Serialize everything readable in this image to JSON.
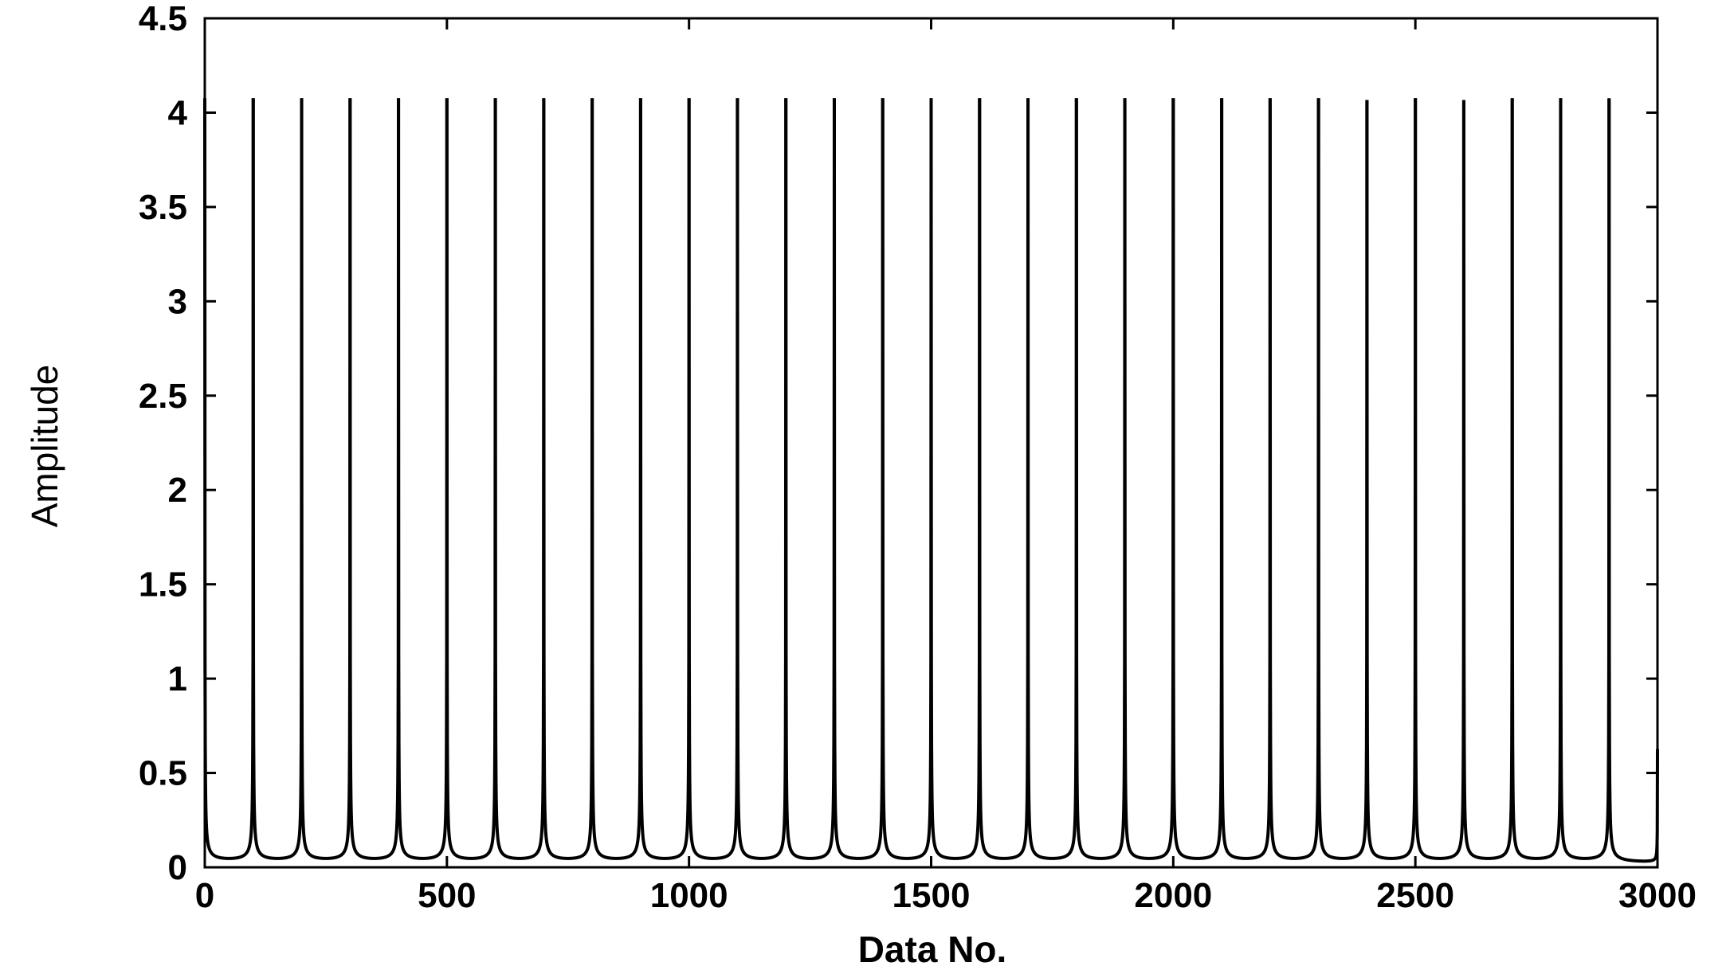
{
  "chart_data": {
    "type": "line",
    "title": "",
    "xlabel": "Data No.",
    "ylabel": "Amplitude",
    "xlim": [
      0,
      3000
    ],
    "ylim": [
      0,
      4.5
    ],
    "xticks": [
      0,
      500,
      1000,
      1500,
      2000,
      2500,
      3000
    ],
    "xtick_labels": [
      "0",
      "500",
      "1000",
      "1500",
      "2000",
      "2500",
      "3000"
    ],
    "yticks": [
      0,
      0.5,
      1,
      1.5,
      2,
      2.5,
      3,
      3.5,
      4,
      4.5
    ],
    "ytick_labels": [
      "0",
      "0.5",
      "1",
      "1.5",
      "2",
      "2.5",
      "3",
      "3.5",
      "4",
      "4.5"
    ],
    "grid": false,
    "legend": "none",
    "line_color": "#000000",
    "series": [
      {
        "peak_positions": [
          0,
          100,
          200,
          300,
          400,
          500,
          600,
          700,
          800,
          900,
          1000,
          1100,
          1200,
          1300,
          1400,
          1500,
          1600,
          1700,
          1800,
          1900,
          2000,
          2100,
          2200,
          2300,
          2400,
          2500,
          2600,
          2700,
          2800,
          2900,
          3000
        ],
        "peak_values": [
          4.07,
          4.07,
          4.07,
          4.07,
          4.07,
          4.07,
          4.07,
          4.07,
          4.07,
          4.07,
          4.07,
          4.07,
          4.07,
          4.07,
          4.07,
          4.07,
          4.07,
          4.07,
          4.07,
          4.07,
          4.07,
          4.07,
          4.07,
          4.07,
          4.06,
          4.07,
          4.06,
          4.07,
          4.07,
          4.07,
          0.62
        ],
        "trough_value": 0.02
      }
    ]
  }
}
